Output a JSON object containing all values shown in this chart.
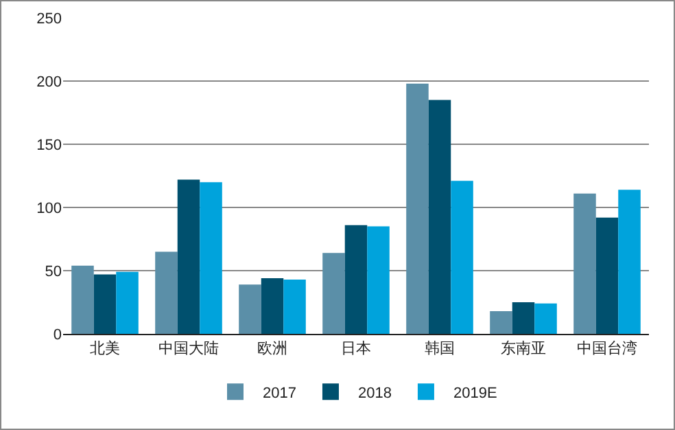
{
  "chart_data": {
    "type": "bar",
    "categories": [
      "北美",
      "中国大陆",
      "欧洲",
      "日本",
      "韩国",
      "东南亚",
      "中国台湾"
    ],
    "series": [
      {
        "name": "2017",
        "color": "#5b8fa8",
        "values": [
          54,
          65,
          39,
          64,
          198,
          18,
          111
        ]
      },
      {
        "name": "2018",
        "color": "#00506e",
        "values": [
          47,
          122,
          44,
          86,
          185,
          25,
          92
        ]
      },
      {
        "name": "2019E",
        "color": "#00a3dc",
        "values": [
          49,
          120,
          43,
          85,
          121,
          24,
          114
        ]
      }
    ],
    "ylim": [
      0,
      250
    ],
    "yticks": [
      0,
      50,
      100,
      150,
      200,
      250
    ],
    "grid": "y",
    "legend": "bottom"
  }
}
